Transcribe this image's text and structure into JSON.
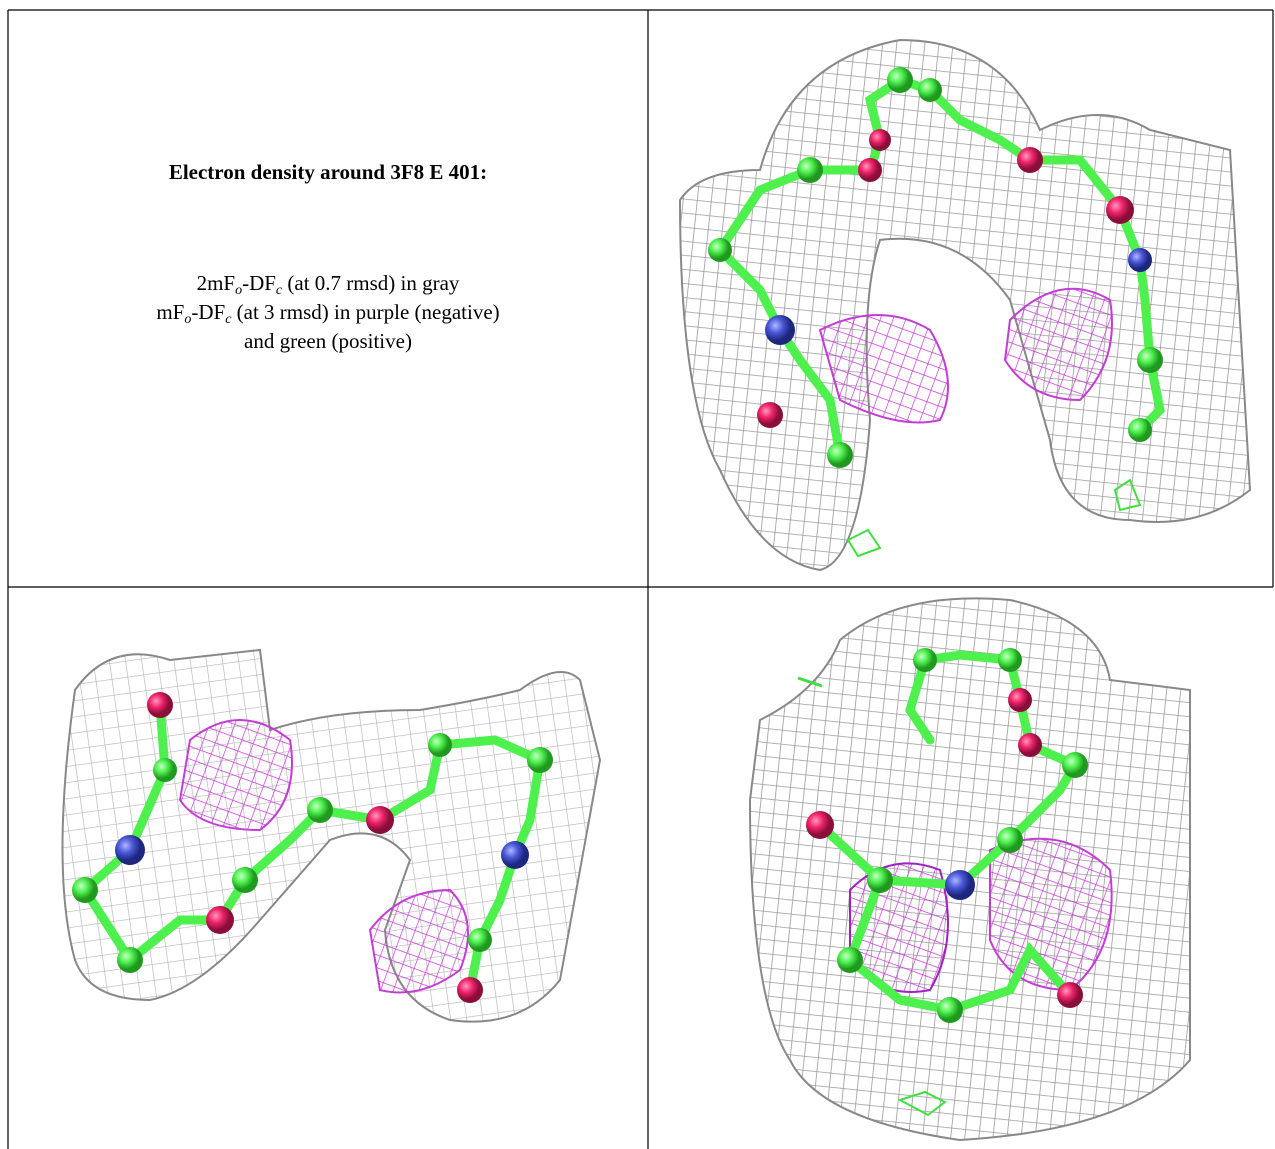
{
  "panel_text": {
    "title": "Electron density around 3F8 E 401:",
    "lines": [
      [
        "2mF",
        "o",
        "-DF",
        "c",
        " (at 0.7 rmsd) in gray"
      ],
      [
        "mF",
        "o",
        "-DF",
        "c",
        " (at 3 rmsd) in purple (negative)"
      ],
      [
        "and green (positive)"
      ]
    ]
  }
}
